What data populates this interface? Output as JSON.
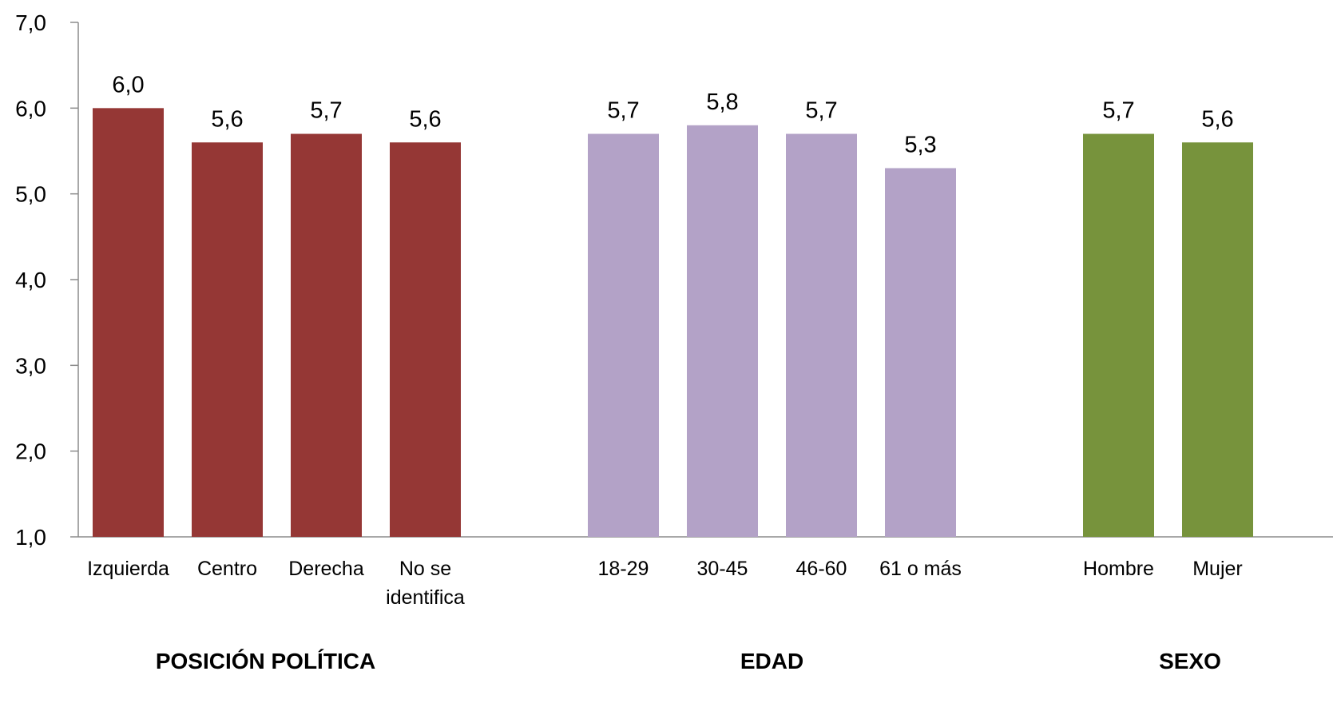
{
  "chart_data": {
    "type": "bar",
    "ylim": [
      1.0,
      7.0
    ],
    "yticks": [
      "1,0",
      "2,0",
      "3,0",
      "4,0",
      "5,0",
      "6,0",
      "7,0"
    ],
    "grid": false,
    "legend": "none",
    "groups": [
      {
        "label": "POSICIÓN POLÍTICA",
        "color": "#953735",
        "categories": [
          [
            "Izquierda"
          ],
          [
            "Centro"
          ],
          [
            "Derecha"
          ],
          [
            "No se",
            "identifica"
          ]
        ],
        "values": [
          6.0,
          5.6,
          5.7,
          5.6
        ],
        "value_labels": [
          "6,0",
          "5,6",
          "5,7",
          "5,6"
        ]
      },
      {
        "label": "EDAD",
        "color": "#B3A2C7",
        "categories": [
          [
            "18-29"
          ],
          [
            "30-45"
          ],
          [
            "46-60"
          ],
          [
            "61 o más"
          ]
        ],
        "values": [
          5.7,
          5.8,
          5.7,
          5.3
        ],
        "value_labels": [
          "5,7",
          "5,8",
          "5,7",
          "5,3"
        ]
      },
      {
        "label": "SEXO",
        "color": "#77933C",
        "categories": [
          [
            "Hombre"
          ],
          [
            "Mujer"
          ]
        ],
        "values": [
          5.7,
          5.6
        ],
        "value_labels": [
          "5,7",
          "5,6"
        ]
      }
    ]
  }
}
